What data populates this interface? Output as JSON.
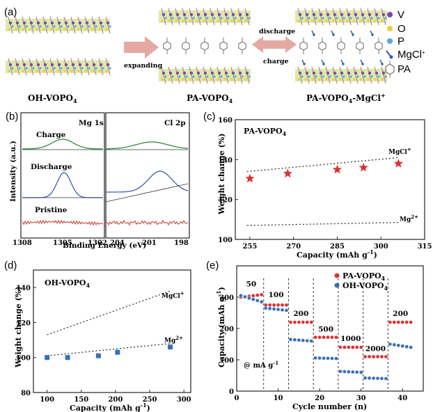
{
  "panel_a": {
    "label": "(a)",
    "names": [
      "OH-VOPO",
      "PA-VOPO",
      "PA-VOPO"
    ],
    "name_subs": [
      "4",
      "4",
      "4"
    ],
    "name_suffix": [
      "",
      "",
      "-MgCl"
    ],
    "name_sup": [
      "",
      "",
      "+"
    ],
    "arrow_expand": "expanding",
    "arrow_discharge": "discharge",
    "arrow_charge": "charge",
    "legend": [
      {
        "label": "V",
        "color": "#7b4aa6"
      },
      {
        "label": "O",
        "color": "#e6d33a"
      },
      {
        "label": "P",
        "color": "#5aa7d8"
      },
      {
        "label": "MgCl",
        "sup": "+",
        "color": "#2f5aa8"
      },
      {
        "label": "PA",
        "color": "#777777"
      }
    ]
  },
  "panel_b": {
    "label": "(b)",
    "left_title": "Mg 1s",
    "right_title": "Cl 2p",
    "rows": [
      "Charge",
      "Discharge",
      "Pristine"
    ],
    "ylabel": "Intensity (a.u.)",
    "xlabel": "Binding Energy (eV)",
    "left_ticks": [
      "1308",
      "1305",
      "1302"
    ],
    "right_ticks": [
      "204",
      "201",
      "198"
    ]
  },
  "chart_data": [
    {
      "type": "scatter",
      "panel": "(c)",
      "title": "PA-VOPO",
      "title_sub": "4",
      "xlabel": "Capacity (mAh g",
      "xlabel_sup": "-1",
      "ylabel": "Weight change (%)",
      "xlim": [
        250,
        315
      ],
      "ylim": [
        100,
        160
      ],
      "xticks": [
        255,
        270,
        285,
        300,
        315
      ],
      "yticks": [
        100,
        120,
        140,
        160
      ],
      "points": {
        "x": [
          255,
          268,
          285,
          294,
          306
        ],
        "y": [
          130.5,
          133,
          135,
          136,
          138
        ]
      },
      "marker_color": "#e03030",
      "lines": [
        {
          "label": "MgCl",
          "sup": "+",
          "x": [
            254,
            306
          ],
          "y": [
            134,
            141
          ]
        },
        {
          "label": "Mg",
          "sup": "2+",
          "x": [
            254,
            306
          ],
          "y": [
            107,
            108.5
          ]
        }
      ]
    },
    {
      "type": "scatter",
      "panel": "(d)",
      "title": "OH-VOPO",
      "title_sub": "4",
      "xlabel": "Capacity (mAh g",
      "xlabel_sup": "-1",
      "ylabel": "Weight change (%)",
      "xlim": [
        80,
        310
      ],
      "ylim": [
        80,
        150
      ],
      "xticks": [
        100,
        150,
        200,
        250,
        300
      ],
      "yticks": [
        80,
        100,
        120,
        140
      ],
      "points": {
        "x": [
          100,
          130,
          175,
          203,
          280
        ],
        "y": [
          100,
          100,
          101,
          103,
          106
        ]
      },
      "marker_color": "#3a6fb8",
      "lines": [
        {
          "label": "MgCl",
          "sup": "+",
          "x": [
            100,
            280
          ],
          "y": [
            113,
            138
          ]
        },
        {
          "label": "Mg",
          "sup": "2+",
          "x": [
            100,
            280
          ],
          "y": [
            101,
            108
          ]
        }
      ]
    },
    {
      "type": "scatter",
      "panel": "(e)",
      "xlabel": "Cycle number (n)",
      "ylabel": "Capacity (mAh g",
      "ylabel_sup": "-1",
      "xlim": [
        0,
        45
      ],
      "ylim": [
        0,
        400
      ],
      "xticks": [
        0,
        10,
        20,
        30,
        40
      ],
      "yticks": [
        0,
        100,
        200,
        300
      ],
      "annotation": "@ mA g",
      "annotation_sup": "-1",
      "rates": [
        "50",
        "100",
        "200",
        "500",
        "1000",
        "2000",
        "200"
      ],
      "series": [
        {
          "name": "PA-VOPO",
          "sub": "4",
          "color": "#e03030",
          "segments": [
            [
              300,
              308
            ],
            [
              275,
              275
            ],
            [
              220,
              220
            ],
            [
              172,
              172
            ],
            [
              140,
              140
            ],
            [
              110,
              110
            ],
            [
              220,
              220
            ]
          ]
        },
        {
          "name": "OH-VOPO",
          "sub": "4",
          "color": "#3a6fb8",
          "segments": [
            [
              305,
              285
            ],
            [
              265,
              258
            ],
            [
              165,
              160
            ],
            [
              106,
              104
            ],
            [
              63,
              60
            ],
            [
              42,
              40
            ],
            [
              150,
              140
            ]
          ]
        }
      ]
    }
  ]
}
